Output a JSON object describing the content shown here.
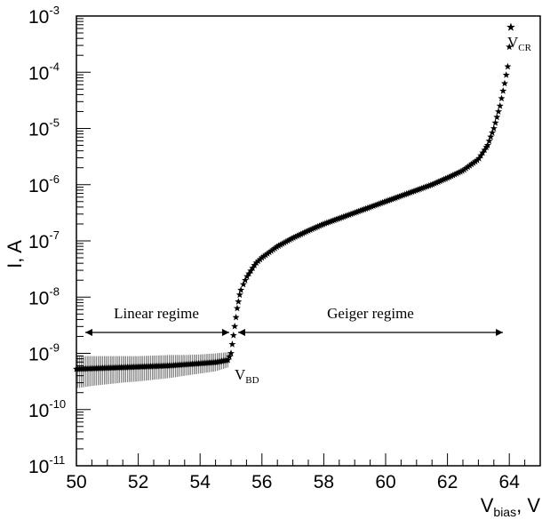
{
  "chart_data": {
    "type": "scatter",
    "title": "",
    "xlabel": {
      "main": "V",
      "sub": "bias",
      "tail": ", V"
    },
    "ylabel": "I, A",
    "xlim": [
      50,
      65
    ],
    "ylim_log10": [
      -11,
      -3
    ],
    "y_scale": "log",
    "grid": false,
    "x_ticks": [
      "50",
      "52",
      "54",
      "56",
      "58",
      "60",
      "62",
      "64"
    ],
    "y_ticks": [
      {
        "base": "10",
        "exp": "-3"
      },
      {
        "base": "10",
        "exp": "-4"
      },
      {
        "base": "10",
        "exp": "-5"
      },
      {
        "base": "10",
        "exp": "-6"
      },
      {
        "base": "10",
        "exp": "-7"
      },
      {
        "base": "10",
        "exp": "-8"
      },
      {
        "base": "10",
        "exp": "-9"
      },
      {
        "base": "10",
        "exp": "-10"
      },
      {
        "base": "10",
        "exp": "-11"
      }
    ],
    "series": [
      {
        "marker": "star",
        "color": "#000000",
        "points_log10": [
          [
            50.0,
            -9.28,
            -9.62,
            -9.05
          ],
          [
            50.5,
            -9.27,
            -9.58,
            -9.05
          ],
          [
            51.0,
            -9.26,
            -9.55,
            -9.05
          ],
          [
            51.5,
            -9.25,
            -9.52,
            -9.05
          ],
          [
            52.0,
            -9.24,
            -9.5,
            -9.05
          ],
          [
            52.5,
            -9.23,
            -9.47,
            -9.04
          ],
          [
            53.0,
            -9.22,
            -9.44,
            -9.03
          ],
          [
            53.5,
            -9.2,
            -9.4,
            -9.03
          ],
          [
            54.0,
            -9.18,
            -9.36,
            -9.02
          ],
          [
            54.5,
            -9.16,
            -9.32,
            -9.0
          ],
          [
            54.9,
            -9.12,
            -9.25,
            -8.98
          ],
          [
            55.0,
            -9.0
          ],
          [
            55.1,
            -8.6
          ],
          [
            55.2,
            -8.2
          ],
          [
            55.3,
            -7.9
          ],
          [
            55.5,
            -7.65
          ],
          [
            55.8,
            -7.4
          ],
          [
            56.0,
            -7.3
          ],
          [
            56.5,
            -7.1
          ],
          [
            57.0,
            -6.95
          ],
          [
            57.5,
            -6.82
          ],
          [
            58.0,
            -6.7
          ],
          [
            58.5,
            -6.6
          ],
          [
            59.0,
            -6.5
          ],
          [
            59.5,
            -6.4
          ],
          [
            60.0,
            -6.3
          ],
          [
            60.5,
            -6.2
          ],
          [
            61.0,
            -6.1
          ],
          [
            61.5,
            -6.0
          ],
          [
            62.0,
            -5.88
          ],
          [
            62.5,
            -5.75
          ],
          [
            63.0,
            -5.55
          ],
          [
            63.3,
            -5.3
          ],
          [
            63.5,
            -5.0
          ],
          [
            63.7,
            -4.6
          ],
          [
            63.85,
            -4.2
          ],
          [
            63.95,
            -3.9
          ],
          [
            64.05,
            -3.2
          ]
        ]
      }
    ],
    "annotations": {
      "vcr": {
        "main": "V",
        "sub": "CR"
      },
      "vbd": {
        "main": "V",
        "sub": "BD"
      },
      "linear_label": "Linear regime",
      "geiger_label": "Geiger regime"
    }
  }
}
